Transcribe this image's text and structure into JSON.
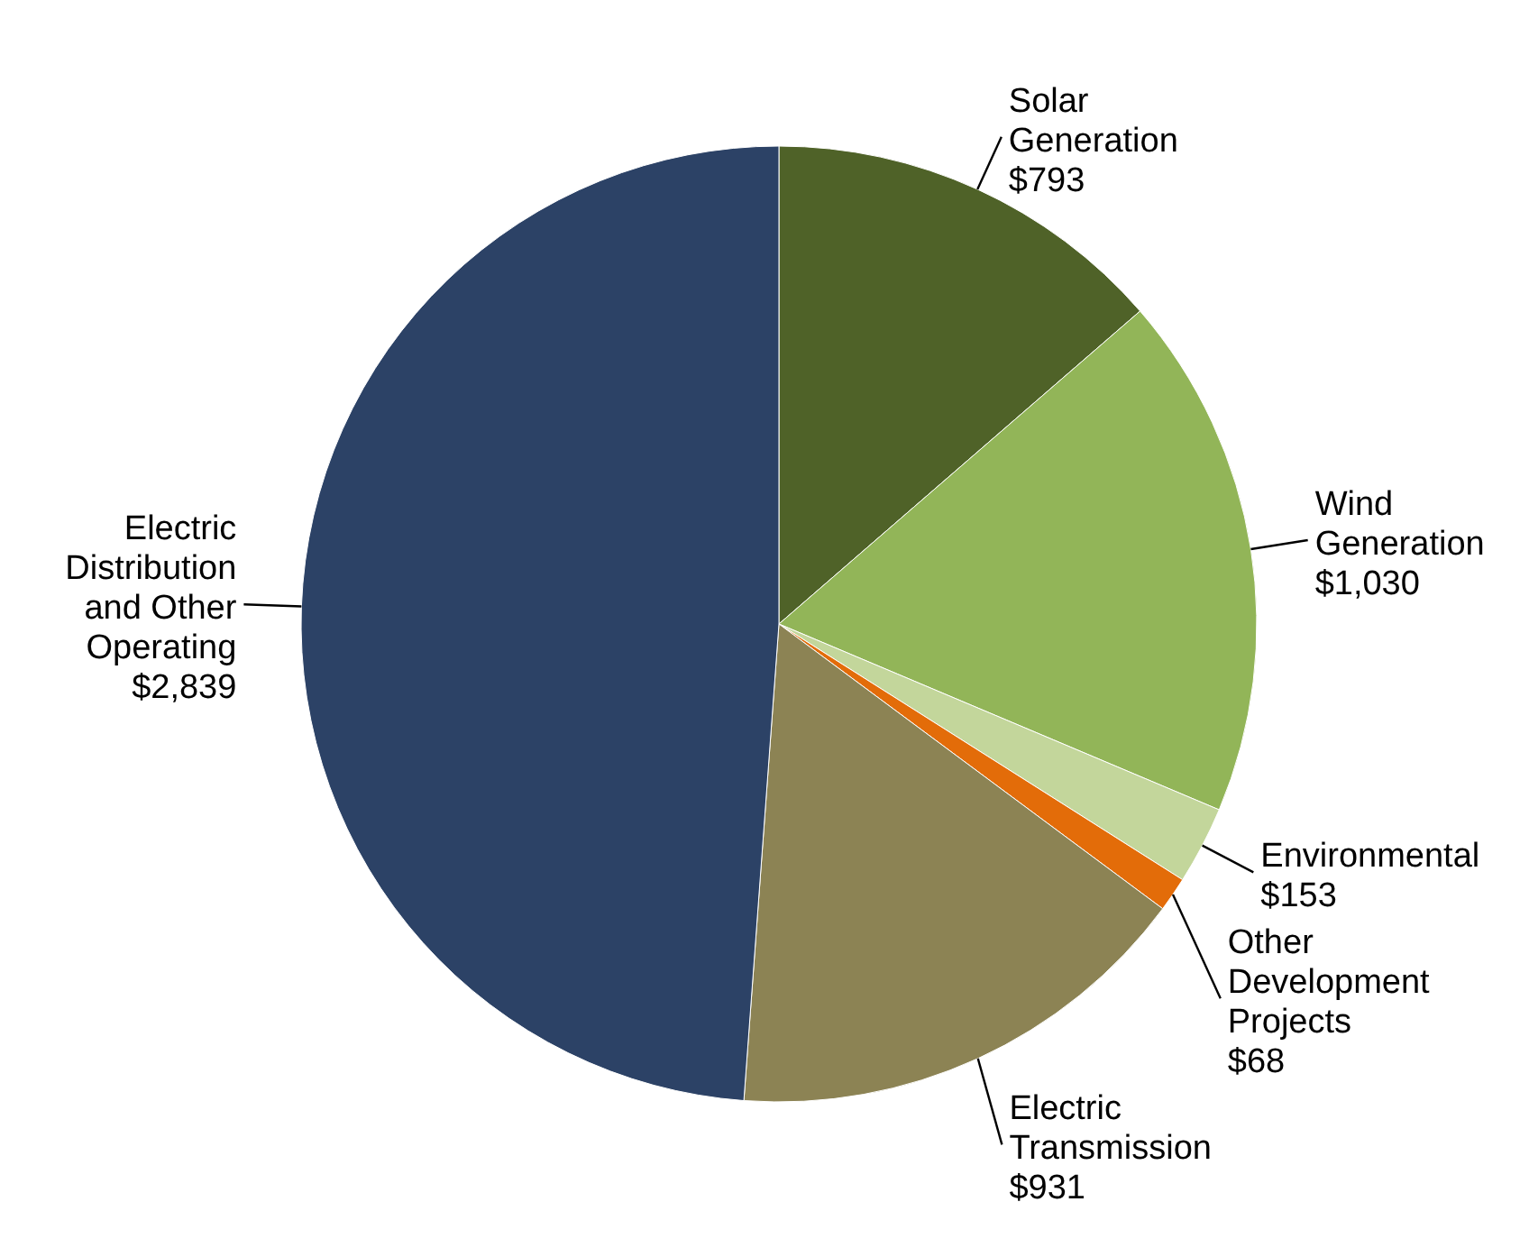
{
  "chart_data": {
    "type": "pie",
    "categories": [
      "Solar Generation",
      "Wind Generation",
      "Environmental",
      "Other Development Projects",
      "Electric Transmission",
      "Electric Distribution and Other Operating"
    ],
    "values": [
      793,
      1030,
      153,
      68,
      931,
      2839
    ],
    "value_labels": [
      "$793",
      "$1,030",
      "$153",
      "$68",
      "$931",
      "$2,839"
    ],
    "colors": [
      "#4f6228",
      "#92b558",
      "#c3d69b",
      "#e36c09",
      "#8c8354",
      "#2c4266"
    ]
  }
}
